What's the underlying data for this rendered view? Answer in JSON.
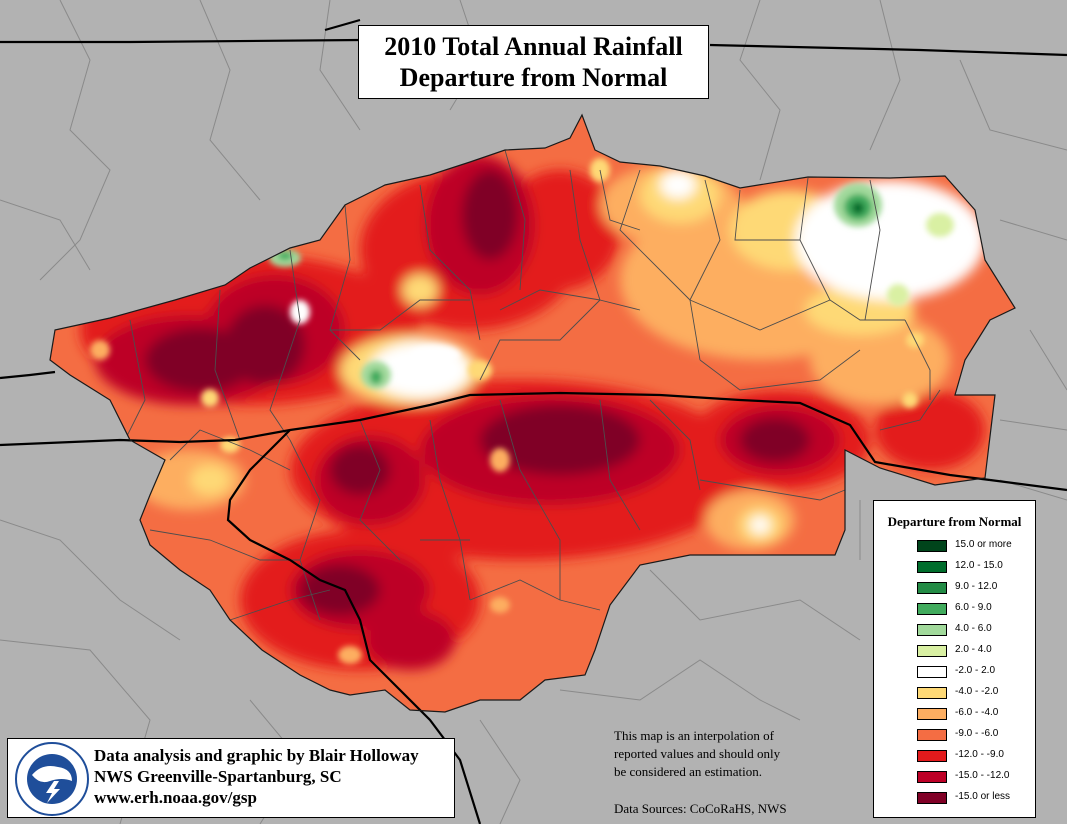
{
  "title": {
    "line1": "2010 Total Annual Rainfall",
    "line2": "Departure from Normal"
  },
  "legend": {
    "title": "Departure from Normal",
    "items": [
      {
        "label": "15.0 or more",
        "color": "#00441b"
      },
      {
        "label": "12.0 - 15.0",
        "color": "#006d2c"
      },
      {
        "label": "9.0 - 12.0",
        "color": "#238b45"
      },
      {
        "label": "6.0 - 9.0",
        "color": "#41ab5d"
      },
      {
        "label": "4.0 - 6.0",
        "color": "#a1d99b"
      },
      {
        "label": "2.0 - 4.0",
        "color": "#d9f0a3"
      },
      {
        "label": "-2.0 - 2.0",
        "color": "#ffffff"
      },
      {
        "label": "-4.0 - -2.0",
        "color": "#fed976"
      },
      {
        "label": "-6.0 - -4.0",
        "color": "#fdae61"
      },
      {
        "label": "-9.0 - -6.0",
        "color": "#f46d43"
      },
      {
        "label": "-12.0 - -9.0",
        "color": "#e31a1c"
      },
      {
        "label": "-15.0 - -12.0",
        "color": "#bd0026"
      },
      {
        "label": "-15.0 or less",
        "color": "#800026"
      }
    ]
  },
  "credit": {
    "line1": "Data analysis and graphic by Blair Holloway",
    "line2": "NWS Greenville-Spartanburg, SC",
    "line3": "www.erh.noaa.gov/gsp",
    "logo_text": "NATIONAL WEATHER SERVICE"
  },
  "note": {
    "line1": "This map is an interpolation of",
    "line2": "reported values and should only",
    "line3": "be considered an estimation."
  },
  "sources": "Data Sources: CoCoRaHS, NWS",
  "colors": {
    "background": "#b2b2b2",
    "county_lines": "#4d4d4d",
    "state_lines": "#000000"
  }
}
